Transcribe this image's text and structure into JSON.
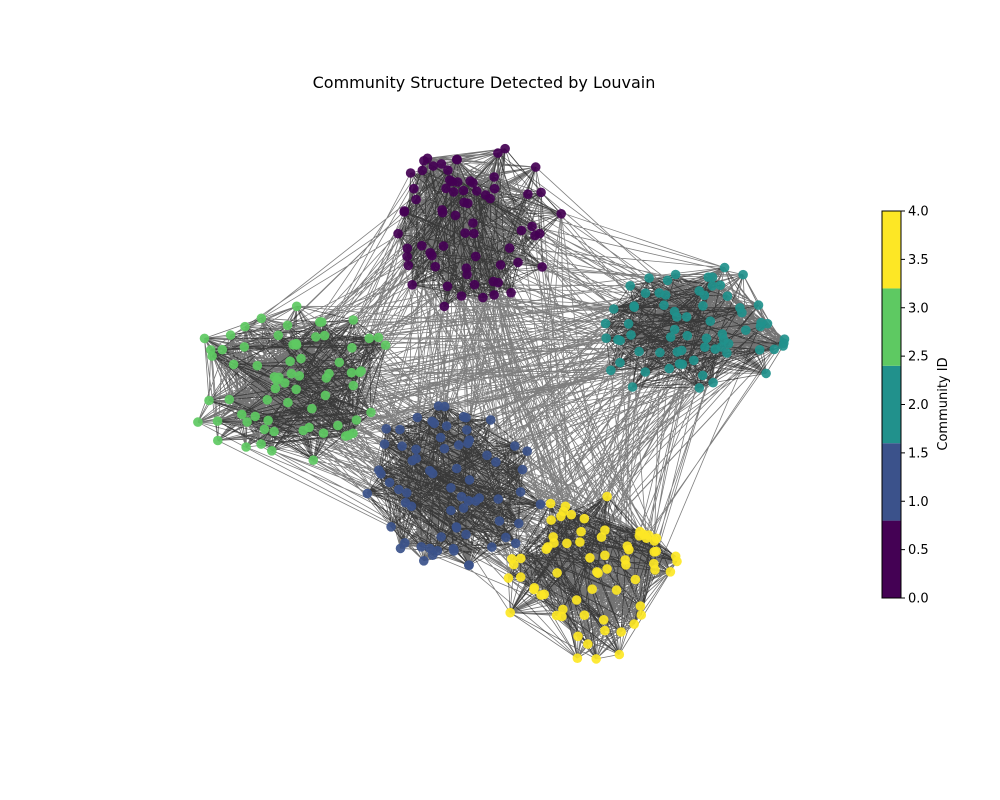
{
  "chart_data": {
    "type": "network",
    "title": "Community Structure Detected by Louvain",
    "communities": [
      {
        "id": 0,
        "color": "#440154",
        "node_count": 70
      },
      {
        "id": 1,
        "color": "#3b528b",
        "node_count": 70
      },
      {
        "id": 2,
        "color": "#21918c",
        "node_count": 70
      },
      {
        "id": 3,
        "color": "#5ec962",
        "node_count": 70
      },
      {
        "id": 4,
        "color": "#fde725",
        "node_count": 70
      }
    ],
    "colorbar": {
      "label": "Community ID",
      "range": [
        0.0,
        4.0
      ],
      "ticks": [
        "0.0",
        "0.5",
        "1.0",
        "1.5",
        "2.0",
        "2.5",
        "3.0",
        "3.5",
        "4.0"
      ],
      "tick_values": [
        0.0,
        0.5,
        1.0,
        1.5,
        2.0,
        2.5,
        3.0,
        3.5,
        4.0
      ]
    }
  }
}
